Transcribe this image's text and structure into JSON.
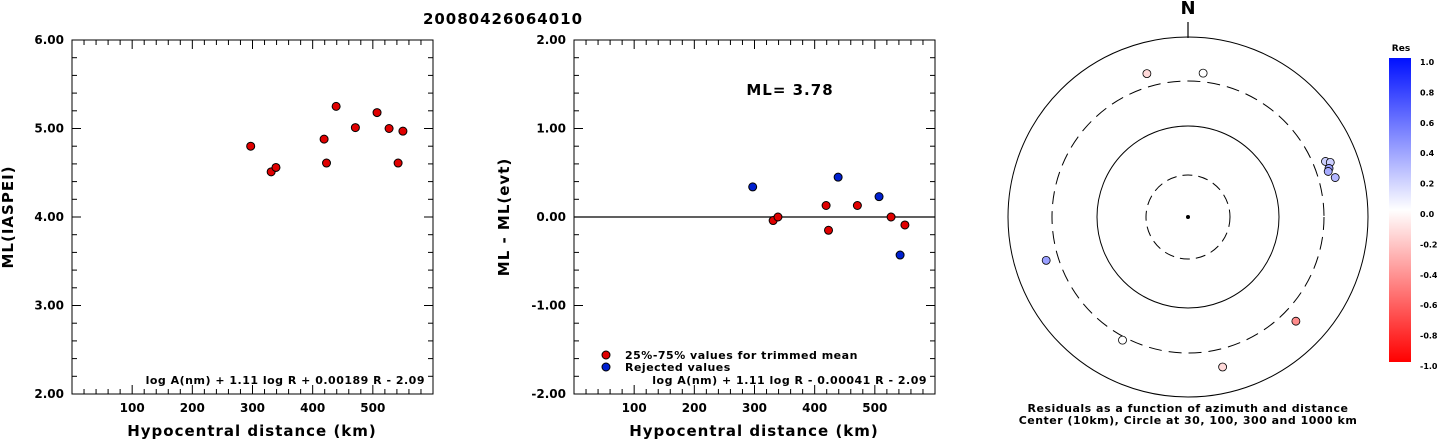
{
  "title": "20080426064010",
  "chart_data": [
    {
      "type": "scatter",
      "ylabel": "ML(IASPEI)",
      "xlabel": "Hypocentral distance (km)",
      "xlim": [
        0,
        600
      ],
      "ylim": [
        2.0,
        6.0
      ],
      "xticks": [
        100,
        200,
        300,
        400,
        500
      ],
      "yticks": [
        "2.00",
        "3.00",
        "4.00",
        "5.00",
        "6.00"
      ],
      "formula": "log A(nm) + 1.11 log R + 0.00189 R - 2.09",
      "series": [
        {
          "color": "#e00000",
          "points": [
            [
              297,
              4.8
            ],
            [
              331,
              4.51
            ],
            [
              339,
              4.56
            ],
            [
              419,
              4.88
            ],
            [
              423,
              4.61
            ],
            [
              439,
              5.25
            ],
            [
              471,
              5.01
            ],
            [
              507,
              5.18
            ],
            [
              527,
              5.0
            ],
            [
              542,
              4.61
            ],
            [
              550,
              4.97
            ]
          ]
        }
      ]
    },
    {
      "type": "scatter",
      "ylabel": "ML - ML(evt)",
      "xlabel": "Hypocentral distance (km)",
      "xlim": [
        0,
        600
      ],
      "ylim": [
        -2.0,
        2.0
      ],
      "xticks": [
        100,
        200,
        300,
        400,
        500
      ],
      "yticks": [
        "-2.00",
        "-1.00",
        "0.00",
        "1.00",
        "2.00"
      ],
      "annotation": "ML= 3.78",
      "formula": "log A(nm) + 1.11 log R - 0.00041 R - 2.09",
      "legend": [
        {
          "label": "25%-75% values for trimmed mean",
          "color": "#e00000"
        },
        {
          "label": "Rejected values",
          "color": "#0020d0"
        }
      ],
      "series": [
        {
          "name": "25%-75% values for trimmed mean",
          "color": "#e00000",
          "points": [
            [
              331,
              -0.04
            ],
            [
              339,
              0.0
            ],
            [
              419,
              0.13
            ],
            [
              423,
              -0.15
            ],
            [
              471,
              0.13
            ],
            [
              527,
              0.0
            ],
            [
              550,
              -0.09
            ]
          ]
        },
        {
          "name": "Rejected values",
          "color": "#0020d0",
          "points": [
            [
              297,
              0.34
            ],
            [
              439,
              0.45
            ],
            [
              507,
              0.23
            ],
            [
              542,
              -0.43
            ]
          ]
        }
      ]
    },
    {
      "type": "polar_scatter",
      "north_label": "N",
      "caption_line1": "Residuals as a function of azimuth and distance",
      "caption_line2": "Center (10km), Circle at 30, 100, 300 and 1000 km",
      "colorbar": {
        "title": "Res",
        "ticks": [
          "1.0",
          "0.8",
          "0.6",
          "0.4",
          "0.2",
          "0.0",
          "-0.2",
          "-0.4",
          "-0.6",
          "-0.8",
          "-1.0"
        ]
      },
      "points": [
        {
          "azimuth": 6,
          "distance_km": 380,
          "residual": 0.0
        },
        {
          "azimuth": 344,
          "distance_km": 430,
          "residual": -0.15
        },
        {
          "azimuth": 68,
          "distance_km": 420,
          "residual": 0.2
        },
        {
          "azimuth": 69,
          "distance_km": 470,
          "residual": 0.2
        },
        {
          "azimuth": 71,
          "distance_km": 430,
          "residual": 0.4
        },
        {
          "azimuth": 72,
          "distance_km": 410,
          "residual": 0.35
        },
        {
          "azimuth": 75,
          "distance_km": 470,
          "residual": 0.3
        },
        {
          "azimuth": 253,
          "distance_km": 420,
          "residual": 0.4
        },
        {
          "azimuth": 208,
          "distance_km": 330,
          "residual": 0.0
        },
        {
          "azimuth": 167,
          "distance_km": 490,
          "residual": -0.15
        },
        {
          "azimuth": 134,
          "distance_km": 440,
          "residual": -0.45
        }
      ]
    }
  ]
}
